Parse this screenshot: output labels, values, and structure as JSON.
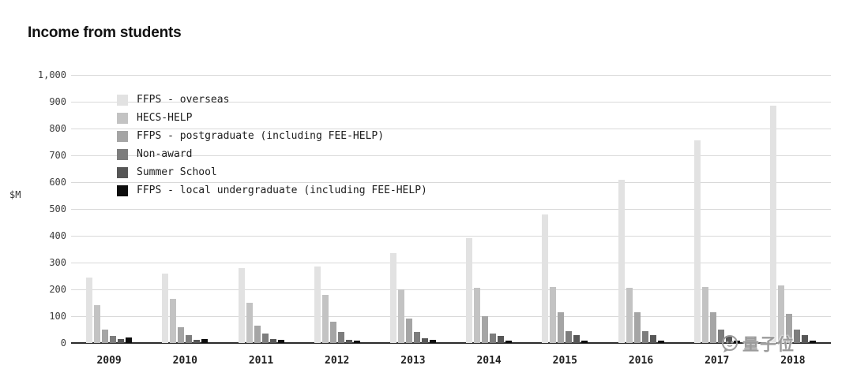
{
  "page": {
    "title": "Income from students"
  },
  "watermark": {
    "text": "量子位",
    "icon": "chat-bubble-logo"
  },
  "chart_data": {
    "type": "bar",
    "title": "Income from students",
    "xlabel": "",
    "ylabel": "$M",
    "ylim": [
      0,
      1000
    ],
    "grid": "horizontal",
    "legend_position": "top-left-inside",
    "yticks": [
      {
        "value": 0,
        "label": "0"
      },
      {
        "value": 100,
        "label": "100"
      },
      {
        "value": 200,
        "label": "200"
      },
      {
        "value": 300,
        "label": "300"
      },
      {
        "value": 400,
        "label": "400"
      },
      {
        "value": 500,
        "label": "500"
      },
      {
        "value": 600,
        "label": "600"
      },
      {
        "value": 700,
        "label": "700"
      },
      {
        "value": 800,
        "label": "800"
      },
      {
        "value": 900,
        "label": "900"
      },
      {
        "value": 1000,
        "label": "1,000"
      }
    ],
    "categories": [
      "2009",
      "2010",
      "2011",
      "2012",
      "2013",
      "2014",
      "2015",
      "2016",
      "2017",
      "2018"
    ],
    "series": [
      {
        "name": "FFPS - overseas",
        "color": "#e2e2e2",
        "values": [
          245,
          260,
          280,
          285,
          335,
          390,
          480,
          610,
          755,
          885
        ]
      },
      {
        "name": "HECS-HELP",
        "color": "#c3c3c3",
        "values": [
          140,
          165,
          150,
          180,
          200,
          205,
          210,
          205,
          210,
          215
        ]
      },
      {
        "name": "FFPS - postgraduate (including FEE-HELP)",
        "color": "#a5a5a5",
        "values": [
          50,
          60,
          65,
          80,
          90,
          100,
          115,
          115,
          115,
          110
        ]
      },
      {
        "name": "Non-award",
        "color": "#7d7d7d",
        "values": [
          25,
          30,
          35,
          40,
          40,
          35,
          45,
          45,
          50,
          50
        ]
      },
      {
        "name": "Summer School",
        "color": "#565656",
        "values": [
          15,
          12,
          15,
          12,
          18,
          25,
          30,
          30,
          25,
          30
        ]
      },
      {
        "name": "FFPS - local undergraduate (including FEE-HELP)",
        "color": "#0d0d0d",
        "values": [
          20,
          15,
          12,
          10,
          12,
          10,
          10,
          8,
          8,
          10
        ]
      }
    ]
  }
}
